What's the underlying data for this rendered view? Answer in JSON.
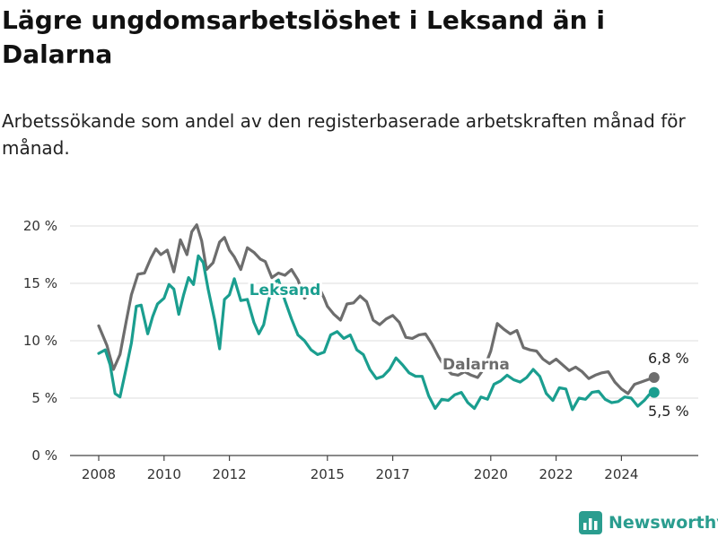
{
  "title": "Lägre ungdomsarbetslöshet i Leksand än i Dalarna",
  "subtitle": "Arbetssökande som andel av den registerbaserade arbetskraften månad för månad.",
  "brand": {
    "name": "Newsworthy",
    "icon": "bar-chart-logo-icon"
  },
  "colors": {
    "leksand": "#1a9e8f",
    "dalarna": "#6d6d6d",
    "grid": "#dcdcdc"
  },
  "chart_data": {
    "type": "line",
    "xlim": [
      2008,
      2025.5
    ],
    "ylim": [
      0,
      20
    ],
    "x_ticks": [
      2008,
      2010,
      2012,
      2015,
      2017,
      2020,
      2022,
      2024
    ],
    "x_tick_labels": [
      "2008",
      "2010",
      "2012",
      "2015",
      "2017",
      "2020",
      "2022",
      "2024"
    ],
    "y_ticks": [
      0,
      5,
      10,
      15,
      20
    ],
    "y_tick_labels": [
      "0 %",
      "5 %",
      "10 %",
      "15 %",
      "20 %"
    ],
    "grid": true,
    "series": [
      {
        "name": "Dalarna",
        "key": "dalarna",
        "end_label": "6,8 %",
        "x": [
          2008.0,
          2008.25,
          2008.45,
          2008.65,
          2008.85,
          2009.0,
          2009.2,
          2009.4,
          2009.6,
          2009.75,
          2009.9,
          2010.1,
          2010.3,
          2010.5,
          2010.7,
          2010.85,
          2011.0,
          2011.15,
          2011.3,
          2011.5,
          2011.7,
          2011.85,
          2012.0,
          2012.15,
          2012.35,
          2012.55,
          2012.75,
          2012.95,
          2013.1,
          2013.3,
          2013.5,
          2013.7,
          2013.9,
          2014.1,
          2014.3,
          2014.5,
          2014.7,
          2014.9,
          2015.0,
          2015.2,
          2015.4,
          2015.6,
          2015.8,
          2016.0,
          2016.2,
          2016.4,
          2016.6,
          2016.8,
          2017.0,
          2017.2,
          2017.4,
          2017.6,
          2017.8,
          2018.0,
          2018.2,
          2018.4,
          2018.6,
          2018.8,
          2019.0,
          2019.2,
          2019.4,
          2019.6,
          2019.8,
          2020.0,
          2020.2,
          2020.4,
          2020.6,
          2020.8,
          2021.0,
          2021.2,
          2021.4,
          2021.6,
          2021.8,
          2022.0,
          2022.2,
          2022.4,
          2022.6,
          2022.8,
          2023.0,
          2023.2,
          2023.4,
          2023.6,
          2023.8,
          2024.0,
          2024.2,
          2024.4,
          2024.6,
          2024.8,
          2025.0
        ],
        "y": [
          11.3,
          9.6,
          7.5,
          8.8,
          11.8,
          14.0,
          15.8,
          15.9,
          17.2,
          18.0,
          17.5,
          17.9,
          16.0,
          18.8,
          17.5,
          19.5,
          20.1,
          18.7,
          16.2,
          16.8,
          18.6,
          19.0,
          17.9,
          17.3,
          16.2,
          18.1,
          17.7,
          17.1,
          16.9,
          15.5,
          15.9,
          15.7,
          16.2,
          15.3,
          13.7,
          14.3,
          14.9,
          13.7,
          13.0,
          12.3,
          11.8,
          13.2,
          13.3,
          13.9,
          13.4,
          11.8,
          11.4,
          11.9,
          12.2,
          11.6,
          10.3,
          10.2,
          10.5,
          10.6,
          9.7,
          8.6,
          7.7,
          7.1,
          7.0,
          7.3,
          7.0,
          6.8,
          7.6,
          9.1,
          11.5,
          11.0,
          10.6,
          10.9,
          9.4,
          9.2,
          9.1,
          8.4,
          8.0,
          8.4,
          7.9,
          7.4,
          7.7,
          7.3,
          6.7,
          7.0,
          7.2,
          7.3,
          6.4,
          5.8,
          5.4,
          6.2,
          6.4,
          6.6,
          6.8
        ]
      },
      {
        "name": "Leksand",
        "key": "leksand",
        "end_label": "5,5 %",
        "x": [
          2008.0,
          2008.2,
          2008.35,
          2008.5,
          2008.65,
          2008.85,
          2009.0,
          2009.15,
          2009.3,
          2009.5,
          2009.65,
          2009.8,
          2010.0,
          2010.15,
          2010.3,
          2010.45,
          2010.6,
          2010.75,
          2010.9,
          2011.05,
          2011.2,
          2011.35,
          2011.55,
          2011.7,
          2011.85,
          2012.0,
          2012.15,
          2012.35,
          2012.55,
          2012.75,
          2012.9,
          2013.05,
          2013.2,
          2013.35,
          2013.5,
          2013.7,
          2013.9,
          2014.1,
          2014.3,
          2014.5,
          2014.7,
          2014.9,
          2015.1,
          2015.3,
          2015.5,
          2015.7,
          2015.9,
          2016.1,
          2016.3,
          2016.5,
          2016.7,
          2016.9,
          2017.1,
          2017.3,
          2017.5,
          2017.7,
          2017.9,
          2018.1,
          2018.3,
          2018.5,
          2018.7,
          2018.9,
          2019.1,
          2019.3,
          2019.5,
          2019.7,
          2019.9,
          2020.1,
          2020.3,
          2020.5,
          2020.7,
          2020.9,
          2021.1,
          2021.3,
          2021.5,
          2021.7,
          2021.9,
          2022.1,
          2022.3,
          2022.5,
          2022.7,
          2022.9,
          2023.1,
          2023.3,
          2023.5,
          2023.7,
          2023.9,
          2024.1,
          2024.3,
          2024.5,
          2024.7,
          2024.85,
          2025.0
        ],
        "y": [
          8.9,
          9.2,
          7.9,
          5.4,
          5.1,
          7.7,
          9.8,
          13.0,
          13.1,
          10.6,
          12.1,
          13.2,
          13.7,
          14.9,
          14.5,
          12.3,
          14.0,
          15.5,
          14.9,
          17.4,
          16.8,
          14.5,
          11.8,
          9.3,
          13.6,
          14.0,
          15.4,
          13.5,
          13.6,
          11.6,
          10.6,
          11.4,
          13.5,
          15.0,
          15.3,
          13.5,
          11.9,
          10.5,
          10.0,
          9.2,
          8.8,
          9.0,
          10.5,
          10.8,
          10.2,
          10.5,
          9.2,
          8.8,
          7.5,
          6.7,
          6.9,
          7.5,
          8.5,
          7.9,
          7.2,
          6.9,
          6.9,
          5.2,
          4.1,
          4.9,
          4.8,
          5.3,
          5.5,
          4.6,
          4.1,
          5.1,
          4.9,
          6.2,
          6.5,
          7.0,
          6.6,
          6.4,
          6.8,
          7.5,
          6.9,
          5.4,
          4.8,
          5.9,
          5.8,
          4.0,
          5.0,
          4.9,
          5.5,
          5.6,
          4.9,
          4.6,
          4.7,
          5.1,
          5.0,
          4.3,
          4.8,
          5.3,
          5.5
        ]
      }
    ]
  }
}
